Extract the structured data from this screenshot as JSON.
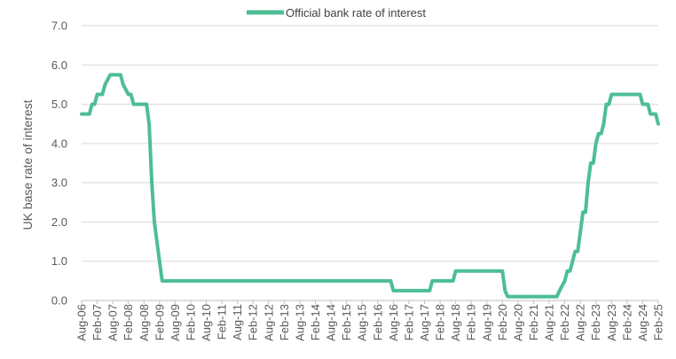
{
  "chart_data": {
    "type": "line",
    "title": "",
    "xlabel": "",
    "ylabel": "UK base rate of interest",
    "ylim": [
      0,
      7
    ],
    "y_ticks": [
      "0.0",
      "1.0",
      "2.0",
      "3.0",
      "4.0",
      "5.0",
      "6.0",
      "7.0"
    ],
    "grid": "horizontal",
    "legend_position": "top",
    "x_tick_labels": [
      "Aug-06",
      "Feb-07",
      "Aug-07",
      "Feb-08",
      "Aug-08",
      "Feb-09",
      "Aug-09",
      "Feb-10",
      "Aug-10",
      "Feb-11",
      "Aug-11",
      "Feb-12",
      "Aug-12",
      "Feb-13",
      "Aug-13",
      "Feb-14",
      "Aug-14",
      "Feb-15",
      "Aug-15",
      "Feb-16",
      "Aug-16",
      "Feb-17",
      "Aug-17",
      "Feb-18",
      "Aug-18",
      "Feb-19",
      "Aug-19",
      "Feb-20",
      "Aug-20",
      "Feb-21",
      "Aug-21",
      "Feb-22",
      "Aug-22",
      "Feb-23",
      "Aug-23",
      "Feb-24",
      "Aug-24",
      "Feb-25"
    ],
    "series": [
      {
        "name": "Official bank rate of interest",
        "color": "#4DBE94",
        "points": [
          [
            "Aug-06",
            4.75
          ],
          [
            "Nov-06",
            4.75
          ],
          [
            "Dec-06",
            5.0
          ],
          [
            "Jan-07",
            5.0
          ],
          [
            "Feb-07",
            5.25
          ],
          [
            "Apr-07",
            5.25
          ],
          [
            "May-07",
            5.5
          ],
          [
            "Jul-07",
            5.75
          ],
          [
            "Nov-07",
            5.75
          ],
          [
            "Dec-07",
            5.5
          ],
          [
            "Feb-08",
            5.25
          ],
          [
            "Mar-08",
            5.25
          ],
          [
            "Apr-08",
            5.0
          ],
          [
            "Sep-08",
            5.0
          ],
          [
            "Oct-08",
            4.5
          ],
          [
            "Nov-08",
            3.0
          ],
          [
            "Dec-08",
            2.0
          ],
          [
            "Jan-09",
            1.5
          ],
          [
            "Feb-09",
            1.0
          ],
          [
            "Mar-09",
            0.5
          ],
          [
            "Jul-16",
            0.5
          ],
          [
            "Aug-16",
            0.25
          ],
          [
            "Oct-17",
            0.25
          ],
          [
            "Nov-17",
            0.5
          ],
          [
            "Jul-18",
            0.5
          ],
          [
            "Aug-18",
            0.75
          ],
          [
            "Feb-20",
            0.75
          ],
          [
            "Mar-20",
            0.25
          ],
          [
            "Apr-20",
            0.1
          ],
          [
            "Nov-21",
            0.1
          ],
          [
            "Dec-21",
            0.25
          ],
          [
            "Feb-22",
            0.5
          ],
          [
            "Mar-22",
            0.75
          ],
          [
            "Apr-22",
            0.75
          ],
          [
            "May-22",
            1.0
          ],
          [
            "Jun-22",
            1.25
          ],
          [
            "Jul-22",
            1.25
          ],
          [
            "Aug-22",
            1.75
          ],
          [
            "Sep-22",
            2.25
          ],
          [
            "Oct-22",
            2.25
          ],
          [
            "Nov-22",
            3.0
          ],
          [
            "Dec-22",
            3.5
          ],
          [
            "Jan-23",
            3.5
          ],
          [
            "Feb-23",
            4.0
          ],
          [
            "Mar-23",
            4.25
          ],
          [
            "Apr-23",
            4.25
          ],
          [
            "May-23",
            4.5
          ],
          [
            "Jun-23",
            5.0
          ],
          [
            "Jul-23",
            5.0
          ],
          [
            "Aug-23",
            5.25
          ],
          [
            "Jul-24",
            5.25
          ],
          [
            "Aug-24",
            5.0
          ],
          [
            "Oct-24",
            5.0
          ],
          [
            "Nov-24",
            4.75
          ],
          [
            "Jan-25",
            4.75
          ],
          [
            "Feb-25",
            4.5
          ]
        ]
      }
    ]
  }
}
